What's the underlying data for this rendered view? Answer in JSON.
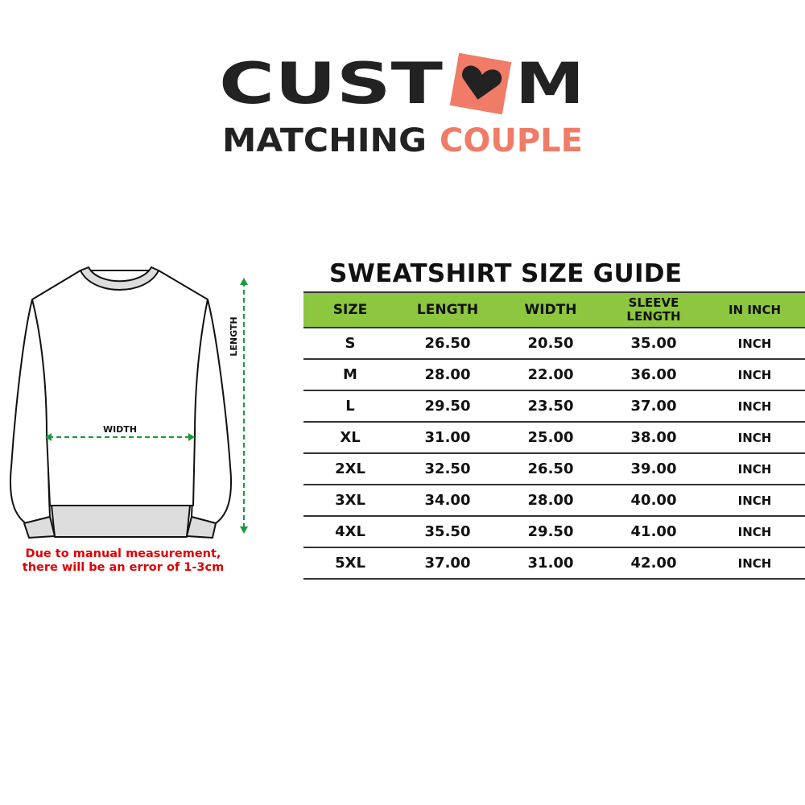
{
  "logo": {
    "line1": "CUSTOM",
    "line2a": "MATCHING",
    "line2b": "COUPLE",
    "accent": "#f07b66",
    "dark": "#222222"
  },
  "diagram": {
    "width_label": "WIDTH",
    "length_label": "LENGTH",
    "arrow_color": "#1a9a3a",
    "note_line1": "Due to manual measurement,",
    "note_line2": "there will be an error of 1-3cm"
  },
  "table": {
    "title": "SWEATSHIRT SIZE GUIDE",
    "header_color": "#8dc63f",
    "headers": [
      "SIZE",
      "LENGTH",
      "WIDTH",
      "SLEEVE LENGTH",
      "IN INCH"
    ],
    "rows": [
      [
        "S",
        "26.50",
        "20.50",
        "35.00",
        "INCH"
      ],
      [
        "M",
        "28.00",
        "22.00",
        "36.00",
        "INCH"
      ],
      [
        "L",
        "29.50",
        "23.50",
        "37.00",
        "INCH"
      ],
      [
        "XL",
        "31.00",
        "25.00",
        "38.00",
        "INCH"
      ],
      [
        "2XL",
        "32.50",
        "26.50",
        "39.00",
        "INCH"
      ],
      [
        "3XL",
        "34.00",
        "28.00",
        "40.00",
        "INCH"
      ],
      [
        "4XL",
        "35.50",
        "29.50",
        "41.00",
        "INCH"
      ],
      [
        "5XL",
        "37.00",
        "31.00",
        "42.00",
        "INCH"
      ]
    ]
  }
}
